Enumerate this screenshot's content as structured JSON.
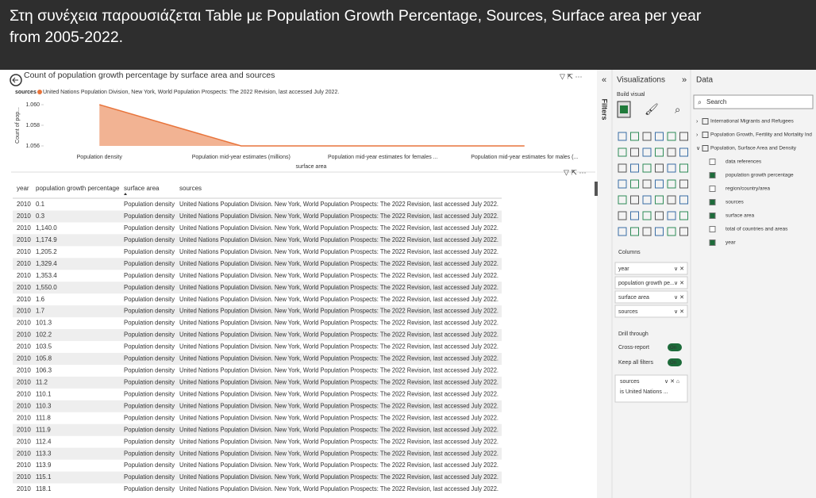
{
  "caption": "Στη συνέχεια παρουσιάζεται Table με Population Growth Percentage, Sources, Surface area per year from 2005-2022.",
  "chart": {
    "type": "area",
    "title": "Count of population growth percentage by surface area and sources",
    "legend_title": "sources",
    "legend_entry": "United Nations Population Division, New York, World Population Prospects: The 2022 Revision, last accessed July 2022.",
    "y_label": "Count of pop...",
    "x_label": "surface area",
    "categories": [
      "Population density",
      "Population mid-year estimates (millions)",
      "Population mid-year estimates for females ...",
      "Population mid-year estimates for males (..."
    ],
    "values": [
      1.06,
      1.056,
      1.056,
      1.056
    ],
    "color": "#e8743b",
    "ylim": [
      1.056,
      1.0605
    ],
    "yticks": [
      1.056,
      1.058,
      {
        "value": 1.06,
        "label": "1.060"
      }
    ]
  },
  "table": {
    "columns": [
      "year",
      "population growth percentage",
      "surface area",
      "sources"
    ],
    "rows": [
      [
        "2010",
        "0.1",
        "Population density",
        "United Nations Population Division. New York, World Population Prospects: The 2022 Revision, last accessed July 2022."
      ],
      [
        "2010",
        "0.3",
        "Population density",
        "United Nations Population Division. New York, World Population Prospects: The 2022 Revision, last accessed July 2022."
      ],
      [
        "2010",
        "1,140.0",
        "Population density",
        "United Nations Population Division. New York, World Population Prospects: The 2022 Revision, last accessed July 2022."
      ],
      [
        "2010",
        "1,174.9",
        "Population density",
        "United Nations Population Division. New York, World Population Prospects: The 2022 Revision, last accessed July 2022."
      ],
      [
        "2010",
        "1,205.2",
        "Population density",
        "United Nations Population Division. New York, World Population Prospects: The 2022 Revision, last accessed July 2022."
      ],
      [
        "2010",
        "1,329.4",
        "Population density",
        "United Nations Population Division. New York, World Population Prospects: The 2022 Revision, last accessed July 2022."
      ],
      [
        "2010",
        "1,353.4",
        "Population density",
        "United Nations Population Division. New York, World Population Prospects: The 2022 Revision, last accessed July 2022."
      ],
      [
        "2010",
        "1,550.0",
        "Population density",
        "United Nations Population Division. New York, World Population Prospects: The 2022 Revision, last accessed July 2022."
      ],
      [
        "2010",
        "1.6",
        "Population density",
        "United Nations Population Division. New York, World Population Prospects: The 2022 Revision, last accessed July 2022."
      ],
      [
        "2010",
        "1.7",
        "Population density",
        "United Nations Population Division. New York, World Population Prospects: The 2022 Revision, last accessed July 2022."
      ],
      [
        "2010",
        "101.3",
        "Population density",
        "United Nations Population Division. New York, World Population Prospects: The 2022 Revision, last accessed July 2022."
      ],
      [
        "2010",
        "102.2",
        "Population density",
        "United Nations Population Division. New York, World Population Prospects: The 2022 Revision, last accessed July 2022."
      ],
      [
        "2010",
        "103.5",
        "Population density",
        "United Nations Population Division. New York, World Population Prospects: The 2022 Revision, last accessed July 2022."
      ],
      [
        "2010",
        "105.8",
        "Population density",
        "United Nations Population Division. New York, World Population Prospects: The 2022 Revision, last accessed July 2022."
      ],
      [
        "2010",
        "106.3",
        "Population density",
        "United Nations Population Division. New York, World Population Prospects: The 2022 Revision, last accessed July 2022."
      ],
      [
        "2010",
        "11.2",
        "Population density",
        "United Nations Population Division. New York, World Population Prospects: The 2022 Revision, last accessed July 2022."
      ],
      [
        "2010",
        "110.1",
        "Population density",
        "United Nations Population Division. New York, World Population Prospects: The 2022 Revision, last accessed July 2022."
      ],
      [
        "2010",
        "110.3",
        "Population density",
        "United Nations Population Division. New York, World Population Prospects: The 2022 Revision, last accessed July 2022."
      ],
      [
        "2010",
        "111.8",
        "Population density",
        "United Nations Population Division. New York, World Population Prospects: The 2022 Revision, last accessed July 2022."
      ],
      [
        "2010",
        "111.9",
        "Population density",
        "United Nations Population Division. New York, World Population Prospects: The 2022 Revision, last accessed July 2022."
      ],
      [
        "2010",
        "112.4",
        "Population density",
        "United Nations Population Division. New York, World Population Prospects: The 2022 Revision, last accessed July 2022."
      ],
      [
        "2010",
        "113.3",
        "Population density",
        "United Nations Population Division. New York, World Population Prospects: The 2022 Revision, last accessed July 2022."
      ],
      [
        "2010",
        "113.9",
        "Population density",
        "United Nations Population Division. New York, World Population Prospects: The 2022 Revision, last accessed July 2022."
      ],
      [
        "2010",
        "115.1",
        "Population density",
        "United Nations Population Division. New York, World Population Prospects: The 2022 Revision, last accessed July 2022."
      ],
      [
        "2010",
        "118.1",
        "Population density",
        "United Nations Population Division. New York, World Population Prospects: The 2022 Revision, last accessed July 2022."
      ]
    ]
  },
  "filters_label": "Filters",
  "visualizations": {
    "title": "Visualizations",
    "build_visual": "Build visual",
    "columns_label": "Columns",
    "wells": [
      "year",
      "population growth pe...",
      "surface area",
      "sources"
    ],
    "drill_through": "Drill through",
    "cross_report": "Cross-report",
    "cross_report_state": "On",
    "keep_all_filters": "Keep all filters",
    "keep_all_filters_state": "On",
    "filter_card": {
      "field": "sources",
      "condition": "is United Nations ..."
    }
  },
  "data_pane": {
    "title": "Data",
    "search": "Search",
    "tables": [
      "International Migrants and Refugees",
      "Population Growth, Fertility and Mortality Ind",
      "Population, Surface Area and Density"
    ],
    "fields": [
      {
        "name": "data references",
        "checked": false
      },
      {
        "name": "population growth percentage",
        "checked": true
      },
      {
        "name": "region/country/area",
        "checked": false
      },
      {
        "name": "sources",
        "checked": true
      },
      {
        "name": "surface area",
        "checked": true
      },
      {
        "name": "total of countries and areas",
        "checked": false
      },
      {
        "name": "year",
        "checked": true
      }
    ]
  }
}
